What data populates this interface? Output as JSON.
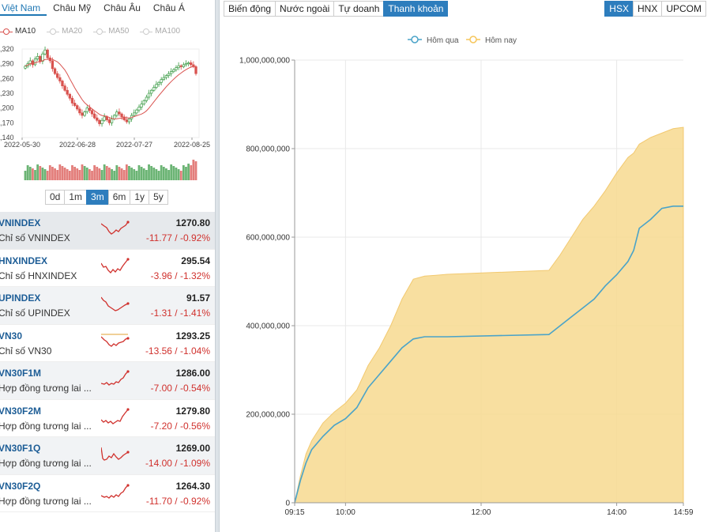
{
  "left": {
    "regions": [
      {
        "label": "Việt Nam",
        "active": true
      },
      {
        "label": "Châu Mỹ",
        "active": false
      },
      {
        "label": "Châu Âu",
        "active": false
      },
      {
        "label": "Châu Á",
        "active": false
      }
    ],
    "ma_legend": [
      {
        "label": "MA10",
        "active": true
      },
      {
        "label": "MA20",
        "active": false
      },
      {
        "label": "MA50",
        "active": false
      },
      {
        "label": "MA100",
        "active": false
      }
    ],
    "mini_chart": {
      "y_ticks": [
        ",320",
        ",290",
        ",260",
        ",230",
        ",200",
        ",170",
        ",140"
      ],
      "x_ticks": [
        "2022-05-30",
        "2022-06-28",
        "2022-07-27",
        "2022-08-25"
      ]
    },
    "periods": [
      {
        "label": "0d",
        "active": false
      },
      {
        "label": "1m",
        "active": false
      },
      {
        "label": "3m",
        "active": true
      },
      {
        "label": "6m",
        "active": false
      },
      {
        "label": "1y",
        "active": false
      },
      {
        "label": "5y",
        "active": false
      }
    ],
    "indices": [
      {
        "code": "VNINDEX",
        "desc": "Chỉ số VNINDEX",
        "price": "1270.80",
        "change": "-11.77 / -0.92%"
      },
      {
        "code": "HNXINDEX",
        "desc": "Chỉ số HNXINDEX",
        "price": "295.54",
        "change": "-3.96 / -1.32%"
      },
      {
        "code": "UPINDEX",
        "desc": "Chỉ số UPINDEX",
        "price": "91.57",
        "change": "-1.31 / -1.41%"
      },
      {
        "code": "VN30",
        "desc": "Chỉ số VN30",
        "price": "1293.25",
        "change": "-13.56 / -1.04%"
      },
      {
        "code": "VN30F1M",
        "desc": "Hợp đồng tương lai ...",
        "price": "1286.00",
        "change": "-7.00 / -0.54%"
      },
      {
        "code": "VN30F2M",
        "desc": "Hợp đồng tương lai ...",
        "price": "1279.80",
        "change": "-7.20 / -0.56%"
      },
      {
        "code": "VN30F1Q",
        "desc": "Hợp đồng tương lai ...",
        "price": "1269.00",
        "change": "-14.00 / -1.09%"
      },
      {
        "code": "VN30F2Q",
        "desc": "Hợp đồng tương lai ...",
        "price": "1264.30",
        "change": "-11.70 / -0.92%"
      }
    ]
  },
  "right": {
    "type_tabs": [
      {
        "label": "Biến động",
        "active": false
      },
      {
        "label": "Nước ngoài",
        "active": false
      },
      {
        "label": "Tự doanh",
        "active": false
      },
      {
        "label": "Thanh khoản",
        "active": true
      }
    ],
    "exchange_tabs": [
      {
        "label": "HSX",
        "active": true
      },
      {
        "label": "HNX",
        "active": false
      },
      {
        "label": "UPCOM",
        "active": false
      }
    ]
  },
  "colors": {
    "accent": "#2d7dbd",
    "negative": "#d0312d",
    "yesterday_line": "#4aa3c8",
    "today_fill": "#f7d98f",
    "today_legend": "#f6c65b",
    "candle_up": "#3a9b45",
    "candle_down": "#d9534f"
  },
  "chart_data": {
    "type": "area",
    "title": "",
    "xlabel": "",
    "ylabel": "",
    "x_ticks": [
      "09:15",
      "10:00",
      "12:00",
      "14:00",
      "14:59"
    ],
    "y_ticks": [
      "0",
      "200,000,000",
      "400,000,000",
      "600,000,000",
      "800,000,000",
      "1,000,000,000"
    ],
    "ylim": [
      0,
      1000000000
    ],
    "grid": true,
    "legend_position": "top",
    "series": [
      {
        "name": "Hôm qua",
        "kind": "line",
        "x": [
          "09:15",
          "09:20",
          "09:25",
          "09:30",
          "09:40",
          "09:50",
          "10:00",
          "10:10",
          "10:20",
          "10:30",
          "10:40",
          "10:50",
          "11:00",
          "11:10",
          "11:20",
          "11:30",
          "13:00",
          "13:10",
          "13:20",
          "13:30",
          "13:40",
          "13:50",
          "14:00",
          "14:10",
          "14:15",
          "14:20",
          "14:30",
          "14:40",
          "14:50",
          "14:59"
        ],
        "values": [
          0,
          50000000,
          90000000,
          120000000,
          150000000,
          175000000,
          190000000,
          215000000,
          260000000,
          290000000,
          320000000,
          350000000,
          370000000,
          375000000,
          375000000,
          375000000,
          380000000,
          400000000,
          420000000,
          440000000,
          460000000,
          490000000,
          515000000,
          545000000,
          570000000,
          620000000,
          640000000,
          665000000,
          670000000,
          670000000
        ]
      },
      {
        "name": "Hôm nay",
        "kind": "area",
        "x": [
          "09:15",
          "09:20",
          "09:25",
          "09:30",
          "09:40",
          "09:50",
          "10:00",
          "10:10",
          "10:20",
          "10:30",
          "10:40",
          "10:50",
          "11:00",
          "11:10",
          "11:20",
          "11:30",
          "13:00",
          "13:10",
          "13:20",
          "13:30",
          "13:40",
          "13:50",
          "14:00",
          "14:10",
          "14:15",
          "14:20",
          "14:30",
          "14:40",
          "14:50",
          "14:59"
        ],
        "values": [
          0,
          60000000,
          110000000,
          140000000,
          180000000,
          205000000,
          225000000,
          255000000,
          310000000,
          350000000,
          400000000,
          460000000,
          505000000,
          512000000,
          514000000,
          516000000,
          525000000,
          560000000,
          600000000,
          640000000,
          670000000,
          705000000,
          745000000,
          780000000,
          790000000,
          810000000,
          825000000,
          835000000,
          845000000,
          848000000
        ]
      }
    ]
  }
}
